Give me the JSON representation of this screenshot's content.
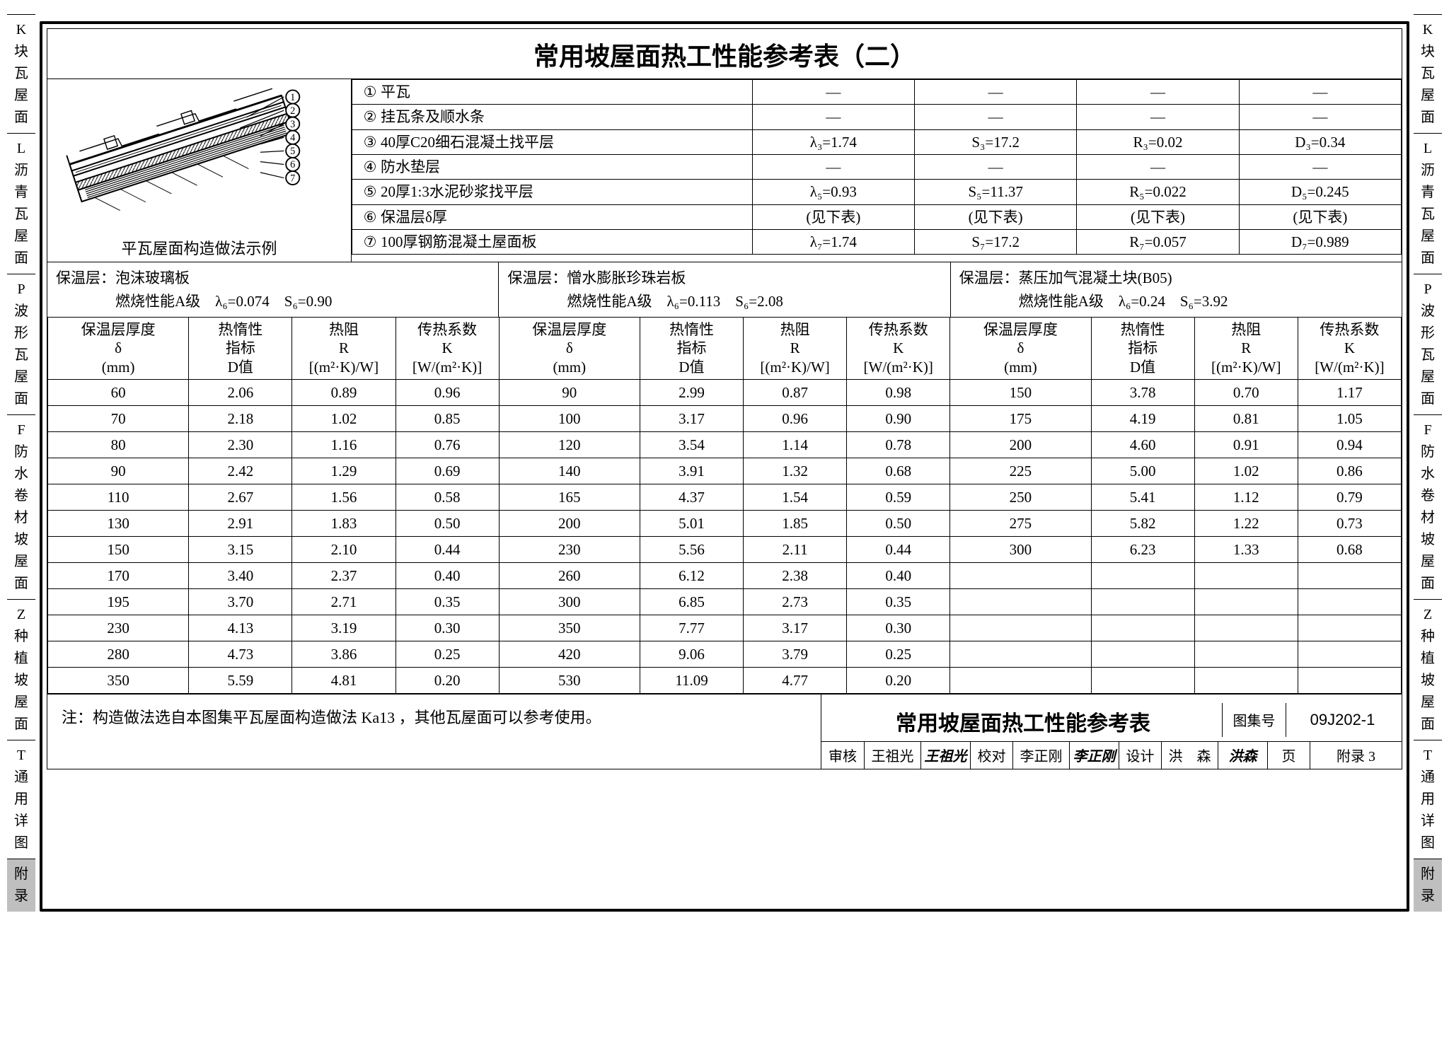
{
  "title": "常用坡屋面热工性能参考表（二）",
  "side_tabs": [
    {
      "code": "K",
      "label": "块瓦屋面"
    },
    {
      "code": "L",
      "label": "沥青瓦屋面"
    },
    {
      "code": "P",
      "label": "波形瓦屋面"
    },
    {
      "code": "F",
      "label": "防水卷材坡屋面"
    },
    {
      "code": "Z",
      "label": "种植坡屋面"
    },
    {
      "code": "T",
      "label": "通用详图"
    },
    {
      "code": "",
      "label": "附录",
      "shaded": true
    }
  ],
  "diagram_caption": "平瓦屋面构造做法示例",
  "layers": [
    {
      "n": "①",
      "desc": "平瓦",
      "v": [
        "—",
        "—",
        "—",
        "—"
      ]
    },
    {
      "n": "②",
      "desc": "挂瓦条及顺水条",
      "v": [
        "—",
        "—",
        "—",
        "—"
      ]
    },
    {
      "n": "③",
      "desc": "40厚C20细石混凝土找平层",
      "v": [
        "λ₃=1.74",
        "S₃=17.2",
        "R₃=0.02",
        "D₃=0.34"
      ]
    },
    {
      "n": "④",
      "desc": "防水垫层",
      "v": [
        "—",
        "—",
        "—",
        "—"
      ]
    },
    {
      "n": "⑤",
      "desc": "20厚1:3水泥砂浆找平层",
      "v": [
        "λ₅=0.93",
        "S₅=11.37",
        "R₅=0.022",
        "D₅=0.245"
      ]
    },
    {
      "n": "⑥",
      "desc": "保温层δ厚",
      "v": [
        "(见下表)",
        "(见下表)",
        "(见下表)",
        "(见下表)"
      ]
    },
    {
      "n": "⑦",
      "desc": "100厚钢筋混凝土屋面板",
      "v": [
        "λ₇=1.74",
        "S₇=17.2",
        "R₇=0.057",
        "D₇=0.989"
      ]
    }
  ],
  "materials": [
    {
      "name": "泡沫玻璃板",
      "grade": "燃烧性能A级",
      "lambda": "λ₆=0.074",
      "s": "S₆=0.90"
    },
    {
      "name": "憎水膨胀珍珠岩板",
      "grade": "燃烧性能A级",
      "lambda": "λ₆=0.113",
      "s": "S₆=2.08"
    },
    {
      "name": "蒸压加气混凝土块(B05)",
      "grade": "燃烧性能A级",
      "lambda": "λ₆=0.24",
      "s": "S₆=3.92"
    }
  ],
  "col_headers": {
    "delta": "保温层厚度\nδ\n(mm)",
    "d": "热惰性\n指标\nD值",
    "r": "热阻\nR\n[(m²·K)/W]",
    "k": "传热系数\nK\n[W/(m²·K)]"
  },
  "rows": [
    [
      [
        "60",
        "2.06",
        "0.89",
        "0.96"
      ],
      [
        "90",
        "2.99",
        "0.87",
        "0.98"
      ],
      [
        "150",
        "3.78",
        "0.70",
        "1.17"
      ]
    ],
    [
      [
        "70",
        "2.18",
        "1.02",
        "0.85"
      ],
      [
        "100",
        "3.17",
        "0.96",
        "0.90"
      ],
      [
        "175",
        "4.19",
        "0.81",
        "1.05"
      ]
    ],
    [
      [
        "80",
        "2.30",
        "1.16",
        "0.76"
      ],
      [
        "120",
        "3.54",
        "1.14",
        "0.78"
      ],
      [
        "200",
        "4.60",
        "0.91",
        "0.94"
      ]
    ],
    [
      [
        "90",
        "2.42",
        "1.29",
        "0.69"
      ],
      [
        "140",
        "3.91",
        "1.32",
        "0.68"
      ],
      [
        "225",
        "5.00",
        "1.02",
        "0.86"
      ]
    ],
    [
      [
        "110",
        "2.67",
        "1.56",
        "0.58"
      ],
      [
        "165",
        "4.37",
        "1.54",
        "0.59"
      ],
      [
        "250",
        "5.41",
        "1.12",
        "0.79"
      ]
    ],
    [
      [
        "130",
        "2.91",
        "1.83",
        "0.50"
      ],
      [
        "200",
        "5.01",
        "1.85",
        "0.50"
      ],
      [
        "275",
        "5.82",
        "1.22",
        "0.73"
      ]
    ],
    [
      [
        "150",
        "3.15",
        "2.10",
        "0.44"
      ],
      [
        "230",
        "5.56",
        "2.11",
        "0.44"
      ],
      [
        "300",
        "6.23",
        "1.33",
        "0.68"
      ]
    ],
    [
      [
        "170",
        "3.40",
        "2.37",
        "0.40"
      ],
      [
        "260",
        "6.12",
        "2.38",
        "0.40"
      ],
      [
        "",
        "",
        "",
        ""
      ]
    ],
    [
      [
        "195",
        "3.70",
        "2.71",
        "0.35"
      ],
      [
        "300",
        "6.85",
        "2.73",
        "0.35"
      ],
      [
        "",
        "",
        "",
        ""
      ]
    ],
    [
      [
        "230",
        "4.13",
        "3.19",
        "0.30"
      ],
      [
        "350",
        "7.77",
        "3.17",
        "0.30"
      ],
      [
        "",
        "",
        "",
        ""
      ]
    ],
    [
      [
        "280",
        "4.73",
        "3.86",
        "0.25"
      ],
      [
        "420",
        "9.06",
        "3.79",
        "0.25"
      ],
      [
        "",
        "",
        "",
        ""
      ]
    ],
    [
      [
        "350",
        "5.59",
        "4.81",
        "0.20"
      ],
      [
        "530",
        "11.09",
        "4.77",
        "0.20"
      ],
      [
        "",
        "",
        "",
        ""
      ]
    ]
  ],
  "note": "注：构造做法选自本图集平瓦屋面构造做法 Ka13 ，其他瓦屋面可以参考使用。",
  "stamp": {
    "title": "常用坡屋面热工性能参考表",
    "atlas_label": "图集号",
    "atlas_no": "09J202-1",
    "page_label": "页",
    "page_no": "附录 3",
    "roles": [
      {
        "role": "审核",
        "name": "王祖光"
      },
      {
        "role": "校对",
        "name": "李正刚"
      },
      {
        "role": "设计",
        "name": "洪　森"
      }
    ]
  }
}
